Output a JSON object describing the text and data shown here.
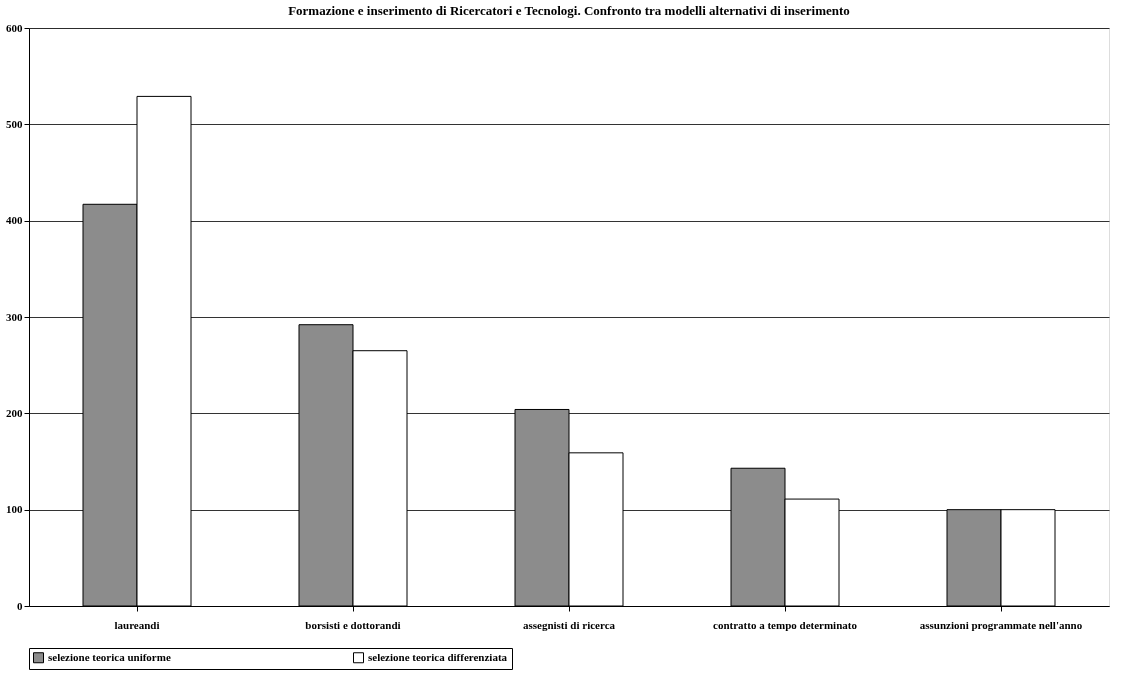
{
  "chart_data": {
    "type": "bar",
    "title": "Formazione e inserimento di Ricercatori e Tecnologi.  Confronto tra modelli alternativi di inserimento",
    "categories": [
      "laureandi",
      "borsisti e dottorandi",
      "assegnisti di ricerca",
      "contratto a tempo determinato",
      "assunzioni programmate nell'anno"
    ],
    "series": [
      {
        "name": "selezione teorica uniforme",
        "color": "#8c8c8c",
        "values": [
          417,
          292,
          204,
          143,
          100
        ]
      },
      {
        "name": "selezione teorica differenziata",
        "color": "#ffffff",
        "values": [
          529,
          265,
          159,
          111,
          100
        ]
      }
    ],
    "ylim": [
      0,
      600
    ],
    "yticks": [
      0,
      100,
      200,
      300,
      400,
      500,
      600
    ],
    "grid": "y",
    "legend": "bottom"
  }
}
